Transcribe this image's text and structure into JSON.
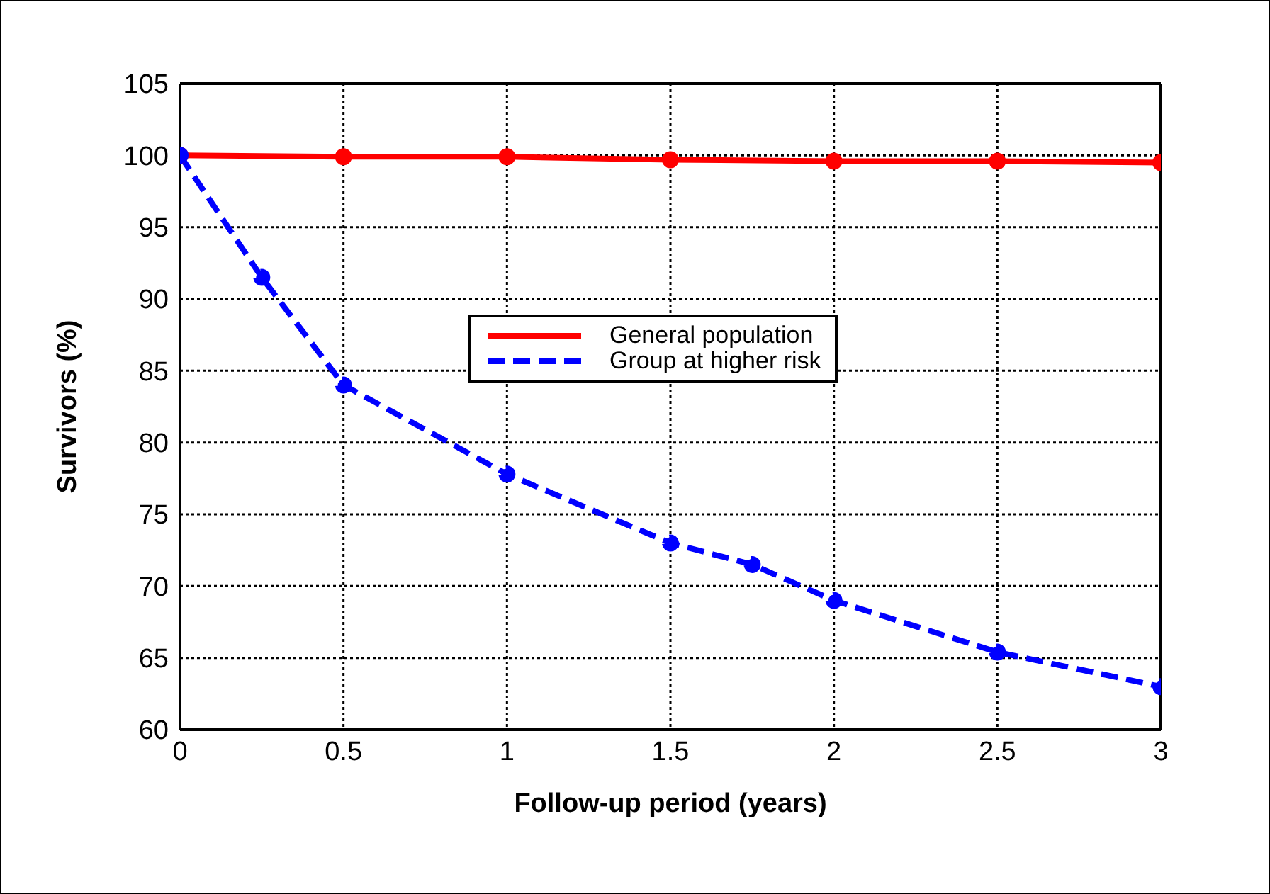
{
  "chart_data": {
    "type": "line",
    "xlabel": "Follow-up period (years)",
    "ylabel": "Survivors (%)",
    "xlim": [
      0,
      3
    ],
    "xticks": [
      0,
      0.5,
      1,
      1.5,
      2,
      2.5,
      3
    ],
    "ylim": [
      60,
      105
    ],
    "yticks": [
      60,
      65,
      70,
      75,
      80,
      85,
      90,
      95,
      100,
      105
    ],
    "grid": true,
    "legend": "top",
    "marker": "circle",
    "series": [
      {
        "name": "General population",
        "color": "#ff0000",
        "line_style": "solid",
        "x": [
          0,
          0.5,
          1,
          1.5,
          2,
          2.5,
          3
        ],
        "values": [
          100,
          99.9,
          99.9,
          99.7,
          99.6,
          99.6,
          99.5
        ]
      },
      {
        "name": "Group at higher risk",
        "color": "#0000ff",
        "line_style": "dashed",
        "x": [
          0,
          0.25,
          0.5,
          1,
          1.5,
          1.75,
          2,
          2.5,
          3
        ],
        "values": [
          100,
          91.5,
          84,
          77.8,
          73,
          71.5,
          69,
          65.4,
          63
        ]
      }
    ]
  }
}
